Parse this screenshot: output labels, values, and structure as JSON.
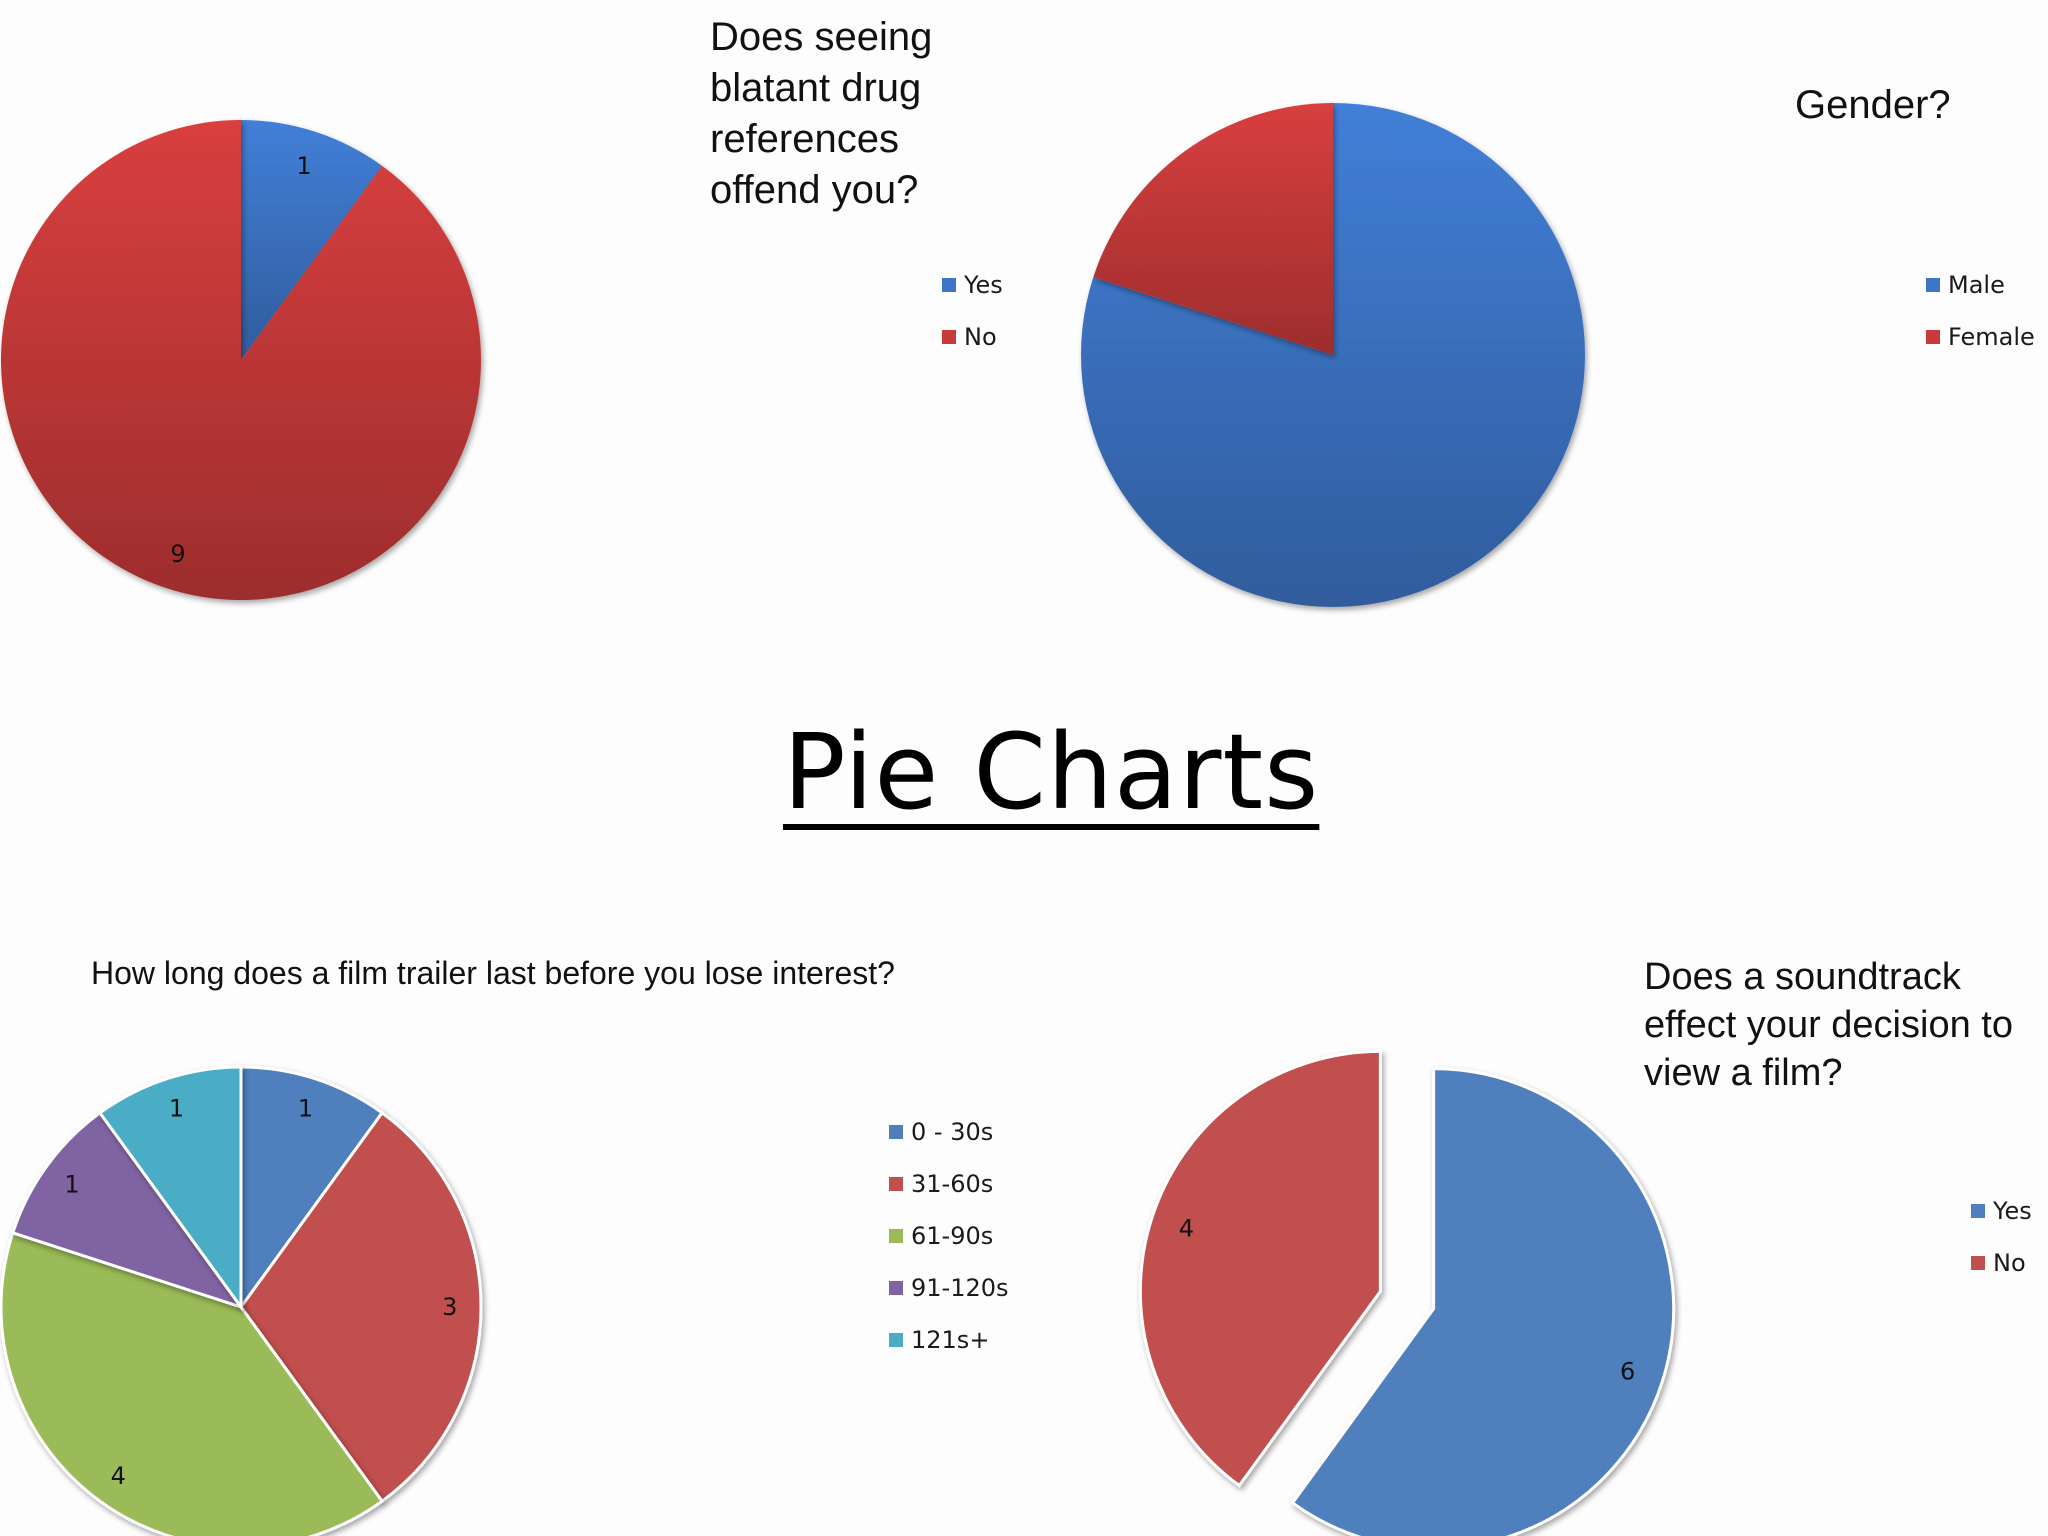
{
  "page": {
    "title": "Pie Charts"
  },
  "colors": {
    "blue": "#3d76c8",
    "red": "#c93a3a",
    "blue_flat": "#4f80bd",
    "red_flat": "#c0504d",
    "green": "#9bbb59",
    "purple": "#8064a2",
    "teal": "#4bacc6"
  },
  "chart_data": [
    {
      "type": "pie",
      "title": "Does seeing\nblatant drug\nreferences\noffend you?",
      "categories": [
        "Yes",
        "No"
      ],
      "values": [
        1,
        9
      ],
      "data_labels": [
        "1",
        "9"
      ],
      "legend": [
        "Yes",
        "No"
      ],
      "legend_position": "right",
      "colors": [
        "#3d76c8",
        "#c93a3a"
      ]
    },
    {
      "type": "pie",
      "title": "Gender?",
      "categories": [
        "Male",
        "Female"
      ],
      "values": [
        8,
        2
      ],
      "legend": [
        "Male",
        "Female"
      ],
      "legend_position": "right",
      "colors": [
        "#3d76c8",
        "#c93a3a"
      ]
    },
    {
      "type": "pie",
      "title": "How long does a film trailer last before you lose interest?",
      "categories": [
        "0 - 30s",
        "31-60s",
        "61-90s",
        "91-120s",
        "121s+"
      ],
      "values": [
        1,
        3,
        4,
        1,
        1
      ],
      "data_labels": [
        "1",
        "3",
        "4",
        "1",
        "1"
      ],
      "legend": [
        "0 - 30s",
        "31-60s",
        "61-90s",
        "91-120s",
        "121s+"
      ],
      "legend_position": "right",
      "colors": [
        "#4f80bd",
        "#c0504d",
        "#9bbb59",
        "#8064a2",
        "#4bacc6"
      ]
    },
    {
      "type": "pie",
      "title": "Does a soundtrack effect your decision to view a film?",
      "categories": [
        "Yes",
        "No"
      ],
      "values": [
        6,
        4
      ],
      "data_labels": [
        "6",
        "4"
      ],
      "legend": [
        "Yes",
        "No"
      ],
      "legend_position": "right",
      "exploded": true,
      "colors": [
        "#4f80bd",
        "#c0504d"
      ]
    }
  ]
}
